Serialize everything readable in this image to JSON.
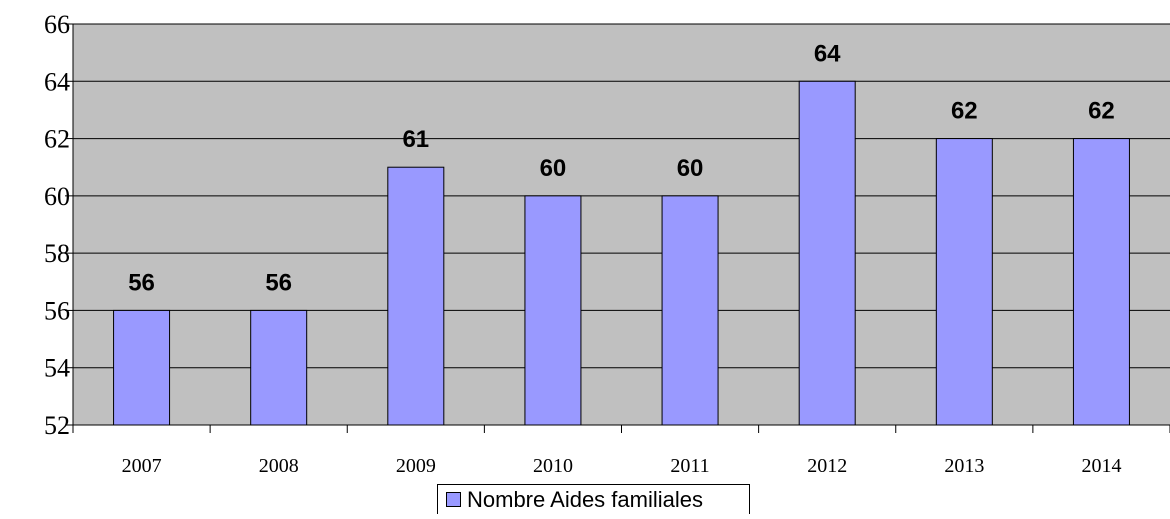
{
  "chart_data": {
    "type": "bar",
    "title": "",
    "xlabel": "",
    "ylabel": "",
    "categories": [
      "2007",
      "2008",
      "2009",
      "2010",
      "2011",
      "2012",
      "2013",
      "2014"
    ],
    "series": [
      {
        "name": "Nombre Aides familiales",
        "values": [
          56,
          56,
          61,
          60,
          60,
          64,
          62,
          62
        ],
        "color": "#9999ff"
      }
    ],
    "data_labels": [
      "56",
      "56",
      "61",
      "60",
      "60",
      "64",
      "62",
      "62"
    ],
    "ylim": [
      52,
      66
    ],
    "yticks": [
      "52",
      "54",
      "56",
      "58",
      "60",
      "62",
      "64",
      "66"
    ],
    "grid": true,
    "plot_background": "#c0c0c0",
    "legend_position": "bottom"
  }
}
